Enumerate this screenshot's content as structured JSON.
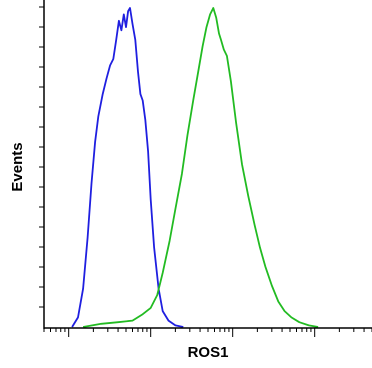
{
  "chart_data": {
    "type": "area",
    "title": "",
    "xlabel": "ROS1",
    "ylabel": "Events",
    "x_scale": "log",
    "xlim": [
      0.5,
      5000
    ],
    "ylim": [
      0,
      1
    ],
    "grid": false,
    "legend": "none",
    "series": [
      {
        "color": "#1f1fe0",
        "points": [
          [
            1.1,
            0.0
          ],
          [
            1.3,
            0.03
          ],
          [
            1.5,
            0.12
          ],
          [
            1.7,
            0.28
          ],
          [
            1.9,
            0.45
          ],
          [
            2.1,
            0.58
          ],
          [
            2.3,
            0.66
          ],
          [
            2.6,
            0.73
          ],
          [
            2.9,
            0.78
          ],
          [
            3.2,
            0.82
          ],
          [
            3.5,
            0.84
          ],
          [
            3.8,
            0.9
          ],
          [
            4.1,
            0.96
          ],
          [
            4.4,
            0.93
          ],
          [
            4.7,
            0.98
          ],
          [
            5.0,
            0.94
          ],
          [
            5.3,
            0.99
          ],
          [
            5.6,
            1.0
          ],
          [
            6.0,
            0.95
          ],
          [
            6.5,
            0.9
          ],
          [
            7.0,
            0.8
          ],
          [
            7.5,
            0.73
          ],
          [
            8.0,
            0.71
          ],
          [
            8.6,
            0.65
          ],
          [
            9.3,
            0.55
          ],
          [
            10.0,
            0.4
          ],
          [
            11.0,
            0.25
          ],
          [
            12.5,
            0.12
          ],
          [
            14.0,
            0.05
          ],
          [
            16.5,
            0.02
          ],
          [
            20.0,
            0.005
          ],
          [
            25.0,
            0.0
          ]
        ]
      },
      {
        "color": "#22bb22",
        "points": [
          [
            1.5,
            0.0
          ],
          [
            2.5,
            0.01
          ],
          [
            4.0,
            0.015
          ],
          [
            6.0,
            0.02
          ],
          [
            8.0,
            0.04
          ],
          [
            10.0,
            0.06
          ],
          [
            12.0,
            0.1
          ],
          [
            14.0,
            0.17
          ],
          [
            17.0,
            0.27
          ],
          [
            20.0,
            0.37
          ],
          [
            24.0,
            0.48
          ],
          [
            28.0,
            0.6
          ],
          [
            33.0,
            0.71
          ],
          [
            38.0,
            0.8
          ],
          [
            43.0,
            0.88
          ],
          [
            48.0,
            0.94
          ],
          [
            53.0,
            0.98
          ],
          [
            58.0,
            1.0
          ],
          [
            63.0,
            0.97
          ],
          [
            68.0,
            0.92
          ],
          [
            72.0,
            0.9
          ],
          [
            78.0,
            0.87
          ],
          [
            85.0,
            0.85
          ],
          [
            95.0,
            0.77
          ],
          [
            110.0,
            0.64
          ],
          [
            130.0,
            0.51
          ],
          [
            155.0,
            0.41
          ],
          [
            185.0,
            0.32
          ],
          [
            215.0,
            0.25
          ],
          [
            250.0,
            0.19
          ],
          [
            300.0,
            0.13
          ],
          [
            360.0,
            0.08
          ],
          [
            430.0,
            0.05
          ],
          [
            520.0,
            0.03
          ],
          [
            650.0,
            0.015
          ],
          [
            850.0,
            0.005
          ],
          [
            1100.0,
            0.0
          ]
        ]
      }
    ]
  }
}
